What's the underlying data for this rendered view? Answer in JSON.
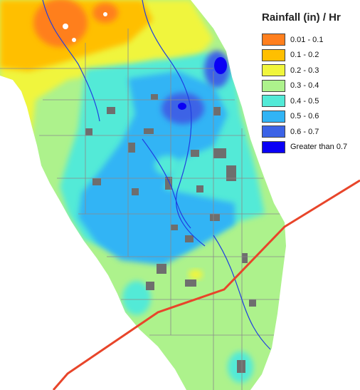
{
  "legend": {
    "title": "Rainfall (in) / Hr",
    "items": [
      {
        "label": "0.01 - 0.1",
        "color": "#ff7f1e"
      },
      {
        "label": "0.1 - 0.2",
        "color": "#ffbf00"
      },
      {
        "label": "0.2 - 0.3",
        "color": "#f0f53c"
      },
      {
        "label": "0.3 - 0.4",
        "color": "#adf28c"
      },
      {
        "label": "0.4 - 0.5",
        "color": "#52ead7"
      },
      {
        "label": "0.5 - 0.6",
        "color": "#31b4f5"
      },
      {
        "label": "0.6 - 0.7",
        "color": "#3c63e6"
      },
      {
        "label": "Greater than 0.7",
        "color": "#0a00f5"
      }
    ]
  },
  "colors": {
    "water": "#ffffff",
    "urban": "#6e6e6e",
    "rivers": "#1f3ee0",
    "storm_track": "#e8452a",
    "boundaries": "#8a8a8a"
  }
}
